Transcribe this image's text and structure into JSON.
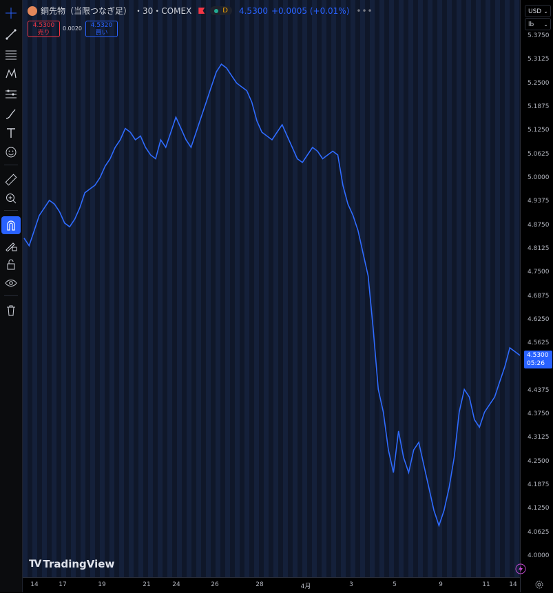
{
  "header": {
    "symbol_name": "銅先物（当限つなぎ足）",
    "interval_exchange": "・30・COMEX",
    "flag_icon": "flag-icon",
    "timeframe_badge": "D",
    "last_price": "4.5300",
    "change": "+0.0005 (+0.01%)"
  },
  "trade": {
    "sell_price": "4.5300",
    "sell_label": "売り",
    "spread": "0.0020",
    "buy_price": "4.5320",
    "buy_label": "買い"
  },
  "axis_controls": {
    "currency": "USD",
    "unit": "lb"
  },
  "last_price_label": {
    "price": "4.5300",
    "countdown": "05:26"
  },
  "watermark": "TradingView",
  "colors": {
    "line": "#2f6bff",
    "accent": "#2962ff",
    "sell": "#f23645",
    "background": "#0f1729"
  },
  "toolbar_icons": [
    "crosshair-icon",
    "trend-line-icon",
    "fib-icon",
    "pattern-icon",
    "forecast-icon",
    "brush-icon",
    "text-icon",
    "emoji-icon",
    "ruler-icon",
    "zoom-in-icon",
    "magnet-icon",
    "lock-drawing-icon",
    "lock-icon",
    "eye-icon",
    "trash-icon"
  ],
  "chart_data": {
    "type": "line",
    "price_ticks": [
      "5.3750",
      "5.3125",
      "5.2500",
      "5.1875",
      "5.1250",
      "5.0625",
      "5.0000",
      "4.9375",
      "4.8750",
      "4.8125",
      "4.7500",
      "4.6875",
      "4.6250",
      "4.5625",
      "4.5000",
      "4.4375",
      "4.3750",
      "4.3125",
      "4.2500",
      "4.1875",
      "4.1250",
      "4.0625",
      "4.0000"
    ],
    "time_ticks": [
      "14",
      "17",
      "19",
      "21",
      "24",
      "26",
      "28",
      "4月",
      "3",
      "5",
      "9",
      "11",
      "14"
    ],
    "ylim": [
      4.0,
      5.375
    ],
    "series": [
      {
        "values": [
          4.84,
          4.82,
          4.86,
          4.9,
          4.92,
          4.94,
          4.93,
          4.91,
          4.88,
          4.87,
          4.89,
          4.92,
          4.96,
          4.97,
          4.98,
          5.0,
          5.03,
          5.05,
          5.08,
          5.1,
          5.13,
          5.12,
          5.1,
          5.11,
          5.08,
          5.06,
          5.05,
          5.1,
          5.08,
          5.12,
          5.16,
          5.13,
          5.1,
          5.08,
          5.12,
          5.16,
          5.2,
          5.24,
          5.28,
          5.3,
          5.29,
          5.27,
          5.25,
          5.24,
          5.23,
          5.2,
          5.15,
          5.12,
          5.11,
          5.1,
          5.12,
          5.14,
          5.11,
          5.08,
          5.05,
          5.04,
          5.06,
          5.08,
          5.07,
          5.05,
          5.06,
          5.07,
          5.06,
          4.98,
          4.93,
          4.9,
          4.86,
          4.8,
          4.74,
          4.6,
          4.44,
          4.38,
          4.28,
          4.22,
          4.33,
          4.26,
          4.22,
          4.28,
          4.3,
          4.24,
          4.18,
          4.12,
          4.08,
          4.12,
          4.18,
          4.26,
          4.38,
          4.44,
          4.42,
          4.36,
          4.34,
          4.38,
          4.4,
          4.42,
          4.46,
          4.5,
          4.55,
          4.54,
          4.53
        ]
      }
    ]
  }
}
